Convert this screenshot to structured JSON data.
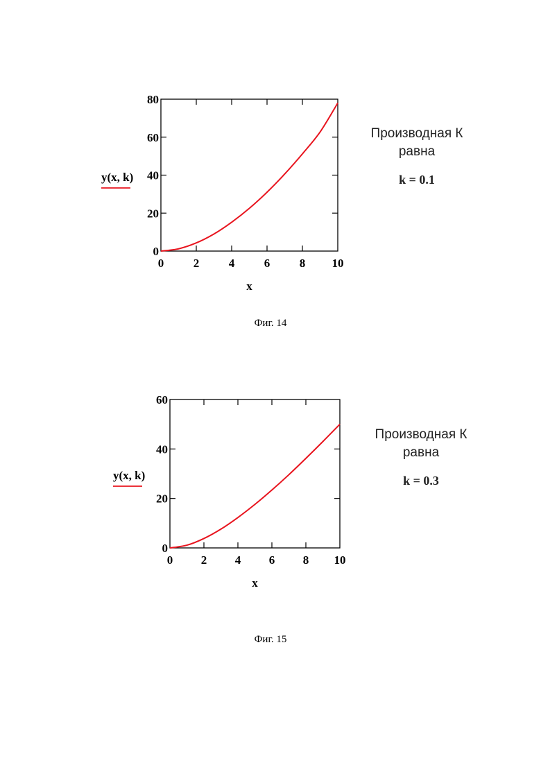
{
  "chart_data": [
    {
      "type": "line",
      "ylabel": "y(x, k)",
      "xlabel": "x",
      "xlim": [
        0,
        10
      ],
      "ylim": [
        0,
        80
      ],
      "x_ticks": [
        "0",
        "2",
        "4",
        "6",
        "8",
        "10"
      ],
      "y_ticks": [
        "0",
        "20",
        "40",
        "60",
        "80"
      ],
      "grid": false,
      "series": [
        {
          "color": "#e8141e",
          "x": [
            0,
            1,
            2,
            3,
            4,
            5,
            6,
            7,
            8,
            9,
            10
          ],
          "y": [
            0,
            1.2,
            4.3,
            9.0,
            15.2,
            22.5,
            31.0,
            40.6,
            51.2,
            62.7,
            78.0
          ]
        }
      ],
      "annotation": {
        "line1": "Производная К",
        "line2": "равна",
        "equation": "k = 0.1"
      },
      "caption": "Фиг.  14"
    },
    {
      "type": "line",
      "ylabel": "y(x, k)",
      "xlabel": "x",
      "xlim": [
        0,
        10
      ],
      "ylim": [
        0,
        60
      ],
      "x_ticks": [
        "0",
        "2",
        "4",
        "6",
        "8",
        "10"
      ],
      "y_ticks": [
        "0",
        "20",
        "40",
        "60"
      ],
      "grid": false,
      "series": [
        {
          "color": "#e8141e",
          "x": [
            0,
            1,
            2,
            3,
            4,
            5,
            6,
            7,
            8,
            9,
            10
          ],
          "y": [
            0,
            1.1,
            3.8,
            7.6,
            12.3,
            17.6,
            23.4,
            29.6,
            36.2,
            43.0,
            50.0
          ]
        }
      ],
      "annotation": {
        "line1": "Производная К",
        "line2": "равна",
        "equation": "k = 0.3"
      },
      "caption": "Фиг.  15"
    }
  ],
  "style": {
    "curve_color": "#e8141e",
    "axis_color": "#000000"
  }
}
